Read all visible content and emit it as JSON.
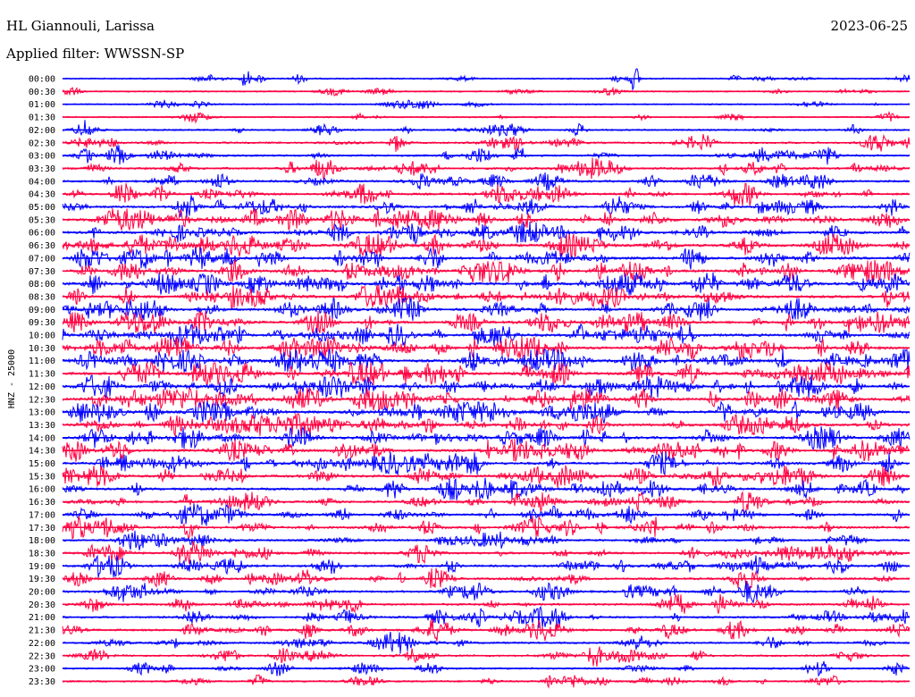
{
  "header": {
    "station": "HL Giannouli, Larissa",
    "date": "2023-06-25",
    "filter": "Applied filter: WWSSN-SP"
  },
  "chart_data": {
    "type": "line",
    "ylabel": "HNZ - 25000",
    "row_labels": [
      "00:00",
      "00:30",
      "01:00",
      "01:30",
      "02:00",
      "02:30",
      "03:00",
      "03:30",
      "04:00",
      "04:30",
      "05:00",
      "05:30",
      "06:00",
      "06:30",
      "07:00",
      "07:30",
      "08:00",
      "08:30",
      "09:00",
      "09:30",
      "10:00",
      "10:30",
      "11:00",
      "11:30",
      "12:00",
      "12:30",
      "13:00",
      "13:30",
      "14:00",
      "14:30",
      "15:00",
      "15:30",
      "16:00",
      "16:30",
      "17:00",
      "17:30",
      "18:00",
      "18:30",
      "19:00",
      "19:30",
      "20:00",
      "20:30",
      "21:00",
      "21:30",
      "22:00",
      "22:30",
      "23:00",
      "23:30"
    ],
    "activity": [
      0.15,
      0.18,
      0.12,
      0.16,
      0.3,
      0.45,
      0.5,
      0.55,
      0.6,
      0.65,
      0.75,
      0.85,
      0.8,
      0.9,
      0.9,
      0.95,
      1.0,
      0.95,
      0.9,
      0.9,
      0.95,
      1.0,
      1.0,
      1.0,
      1.0,
      0.95,
      0.95,
      1.0,
      0.9,
      0.9,
      0.85,
      0.85,
      0.7,
      0.7,
      0.7,
      0.75,
      0.6,
      0.65,
      0.6,
      0.6,
      0.6,
      0.55,
      0.55,
      0.6,
      0.5,
      0.45,
      0.4,
      0.4
    ],
    "colors": {
      "even": "#0000ff",
      "odd": "#ff0040"
    }
  }
}
